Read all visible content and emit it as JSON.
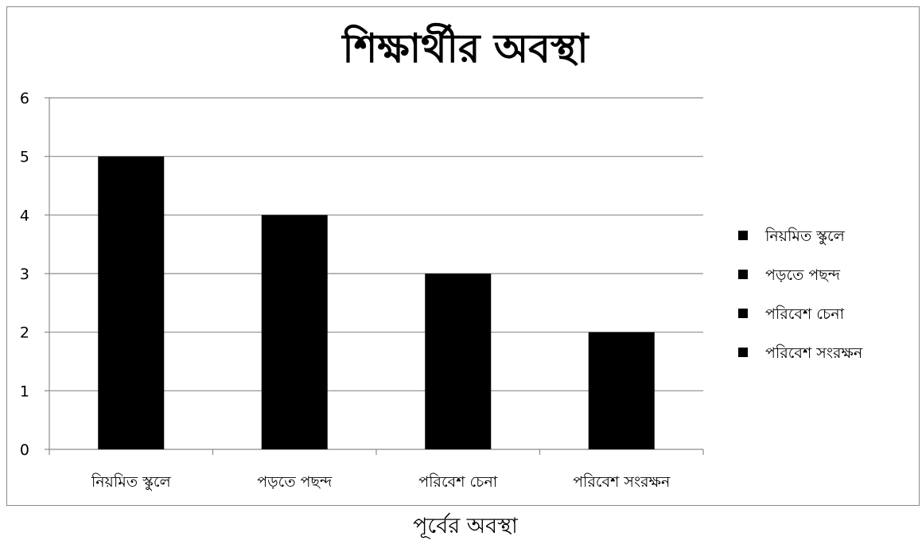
{
  "chart_data": {
    "type": "bar",
    "title": "শিক্ষার্থীর অবস্থা",
    "xlabel": "পূর্বের অবস্থা",
    "ylabel": "",
    "categories": [
      "নিয়মিত স্কুলে",
      "পড়তে পছন্দ",
      "পরিবেশ চেনা",
      "পরিবেশ সংরক্ষন"
    ],
    "values": [
      5,
      4,
      3,
      2
    ],
    "ylim": [
      0,
      6
    ],
    "yticks": [
      "0",
      "1",
      "2",
      "3",
      "4",
      "5",
      "6"
    ],
    "grid": true,
    "legend_placement": "right",
    "legend_entries": [
      "নিয়মিত স্কুলে",
      "পড়তে পছন্দ",
      "পরিবেশ চেনা",
      "পরিবেশ সংরক্ষন"
    ],
    "bar_color": "#000000",
    "grid_color": "#8c8c8c"
  }
}
